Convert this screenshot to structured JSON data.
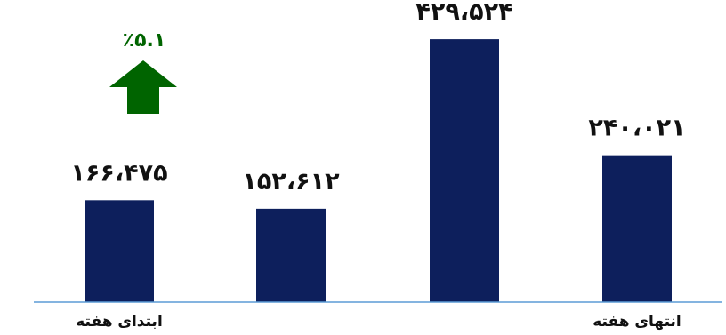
{
  "chart_data": {
    "type": "bar",
    "categories": [
      "ابتدای هفته",
      "",
      "",
      "انتهای هفته"
    ],
    "values": [
      166475,
      152612,
      429524,
      240021
    ],
    "value_labels": [
      "۱۶۶،۴۷۵",
      "۱۵۲،۶۱۲",
      "۴۲۹،۵۲۴",
      "۲۴۰،۰۲۱"
    ],
    "title": "",
    "xlabel": "",
    "ylabel": "",
    "ylim": [
      0,
      450000
    ],
    "grid": false,
    "legend": "none",
    "bar_color": "#0d1f5c",
    "baseline_color": "#5b9bd5",
    "change_indicator": {
      "label": "٪۵.۱",
      "direction": "up",
      "color": "#006400"
    }
  }
}
